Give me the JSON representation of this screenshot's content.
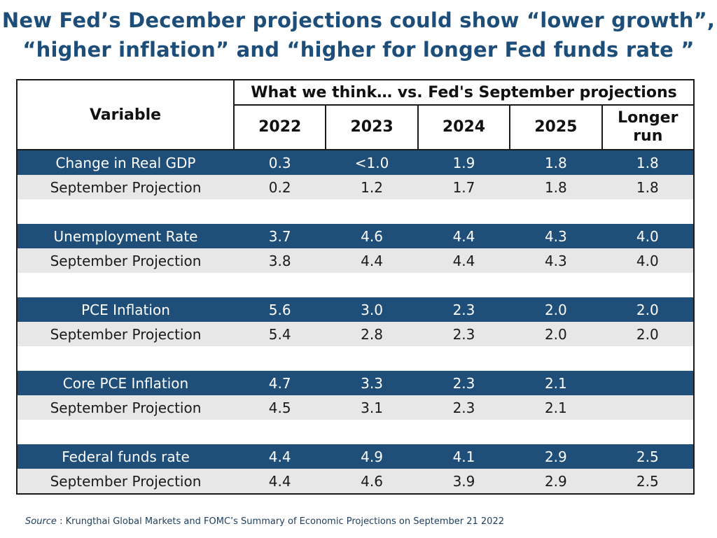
{
  "title": {
    "line1": "New Fed’s December projections could show “lower growth”,",
    "line2": "“higher inflation” and “higher for longer Fed funds rate ”"
  },
  "table": {
    "variable_header": "Variable",
    "group_header": "What we think… vs. Fed's September projections",
    "columns": [
      "2022",
      "2023",
      "2024",
      "2025",
      "Longer run"
    ],
    "groups": [
      {
        "main": {
          "label": "Change in Real GDP",
          "values": [
            "0.3",
            "<1.0",
            "1.9",
            "1.8",
            "1.8"
          ]
        },
        "sep": {
          "label": "September Projection",
          "values": [
            "0.2",
            "1.2",
            "1.7",
            "1.8",
            "1.8"
          ]
        }
      },
      {
        "main": {
          "label": "Unemployment Rate",
          "values": [
            "3.7",
            "4.6",
            "4.4",
            "4.3",
            "4.0"
          ]
        },
        "sep": {
          "label": "September Projection",
          "values": [
            "3.8",
            "4.4",
            "4.4",
            "4.3",
            "4.0"
          ]
        }
      },
      {
        "main": {
          "label": "PCE Inflation",
          "values": [
            "5.6",
            "3.0",
            "2.3",
            "2.0",
            "2.0"
          ]
        },
        "sep": {
          "label": "September Projection",
          "values": [
            "5.4",
            "2.8",
            "2.3",
            "2.0",
            "2.0"
          ]
        }
      },
      {
        "main": {
          "label": "Core PCE Inflation",
          "values": [
            "4.7",
            "3.3",
            "2.3",
            "2.1",
            ""
          ]
        },
        "sep": {
          "label": "September Projection",
          "values": [
            "4.5",
            "3.1",
            "2.3",
            "2.1",
            ""
          ]
        }
      },
      {
        "main": {
          "label": "Federal funds rate",
          "values": [
            "4.4",
            "4.9",
            "4.1",
            "2.9",
            "2.5"
          ]
        },
        "sep": {
          "label": "September Projection",
          "values": [
            "4.4",
            "4.6",
            "3.9",
            "2.9",
            "2.5"
          ]
        }
      }
    ]
  },
  "source": {
    "label": "Source",
    "text": " : Krungthai Global Markets and FOMC’s Summary of Economic Projections on September 21 2022"
  },
  "colors": {
    "title": "#1d4e79",
    "main_row_bg": "#1f4e79",
    "sep_row_bg": "#e7e7e8"
  }
}
